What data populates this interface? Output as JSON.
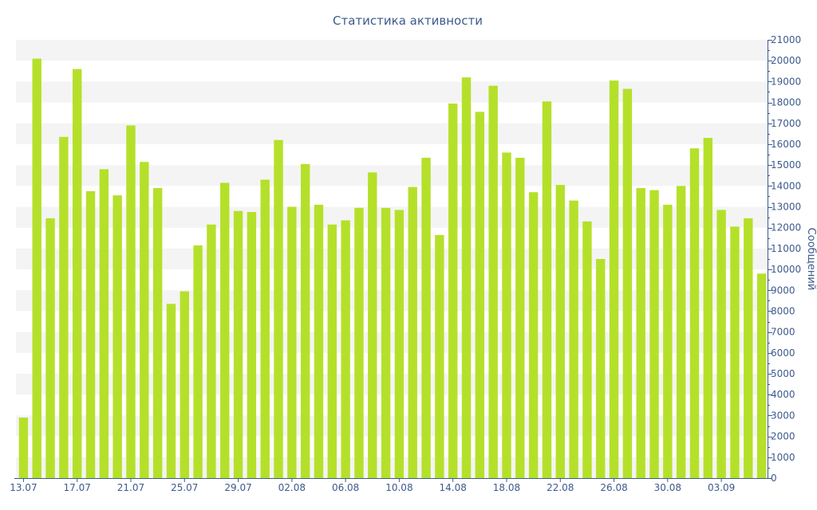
{
  "chart_data": {
    "type": "bar",
    "title": "Статистика активности",
    "xlabel": "",
    "ylabel": "Сообщений",
    "ylim": [
      0,
      21000
    ],
    "y_ticks": [
      0,
      1000,
      2000,
      3000,
      4000,
      5000,
      6000,
      7000,
      8000,
      9000,
      10000,
      11000,
      12000,
      13000,
      14000,
      15000,
      16000,
      17000,
      18000,
      19000,
      20000,
      21000
    ],
    "y_axis_position": "right",
    "x_tick_labels": [
      "13.07",
      "17.07",
      "21.07",
      "25.07",
      "29.07",
      "02.08",
      "06.08",
      "10.08",
      "14.08",
      "18.08",
      "22.08",
      "26.08",
      "30.08",
      "03.09"
    ],
    "categories": [
      "13.07",
      "14.07",
      "15.07",
      "16.07",
      "17.07",
      "18.07",
      "19.07",
      "20.07",
      "21.07",
      "22.07",
      "23.07",
      "24.07",
      "25.07",
      "26.07",
      "27.07",
      "28.07",
      "29.07",
      "30.07",
      "31.07",
      "01.08",
      "02.08",
      "03.08",
      "04.08",
      "05.08",
      "06.08",
      "07.08",
      "08.08",
      "09.08",
      "10.08",
      "11.08",
      "12.08",
      "13.08",
      "14.08",
      "15.08",
      "16.08",
      "17.08",
      "18.08",
      "19.08",
      "20.08",
      "21.08",
      "22.08",
      "23.08",
      "24.08",
      "25.08",
      "26.08",
      "27.08",
      "28.08",
      "29.08",
      "30.08",
      "31.08",
      "01.09",
      "02.09",
      "03.09",
      "04.09",
      "05.09",
      "06.09"
    ],
    "values": [
      2900,
      20100,
      12450,
      16350,
      19600,
      13750,
      14800,
      13550,
      16900,
      15150,
      13900,
      8350,
      8950,
      11150,
      12150,
      14150,
      12800,
      12750,
      14300,
      16200,
      13000,
      15050,
      13100,
      12150,
      12350,
      12950,
      14650,
      12950,
      12850,
      13950,
      15350,
      11650,
      17950,
      19200,
      17550,
      18800,
      15600,
      15350,
      13700,
      18050,
      14050,
      13300,
      12300,
      10500,
      19050,
      18650,
      13900,
      13800,
      13100,
      14000,
      15800,
      16300,
      12850,
      12050,
      12450,
      9800
    ],
    "bar_color": "#b5e02a",
    "grid_band_color": "#f4f4f4",
    "text_color": "#3d5a8c",
    "grid": true
  }
}
